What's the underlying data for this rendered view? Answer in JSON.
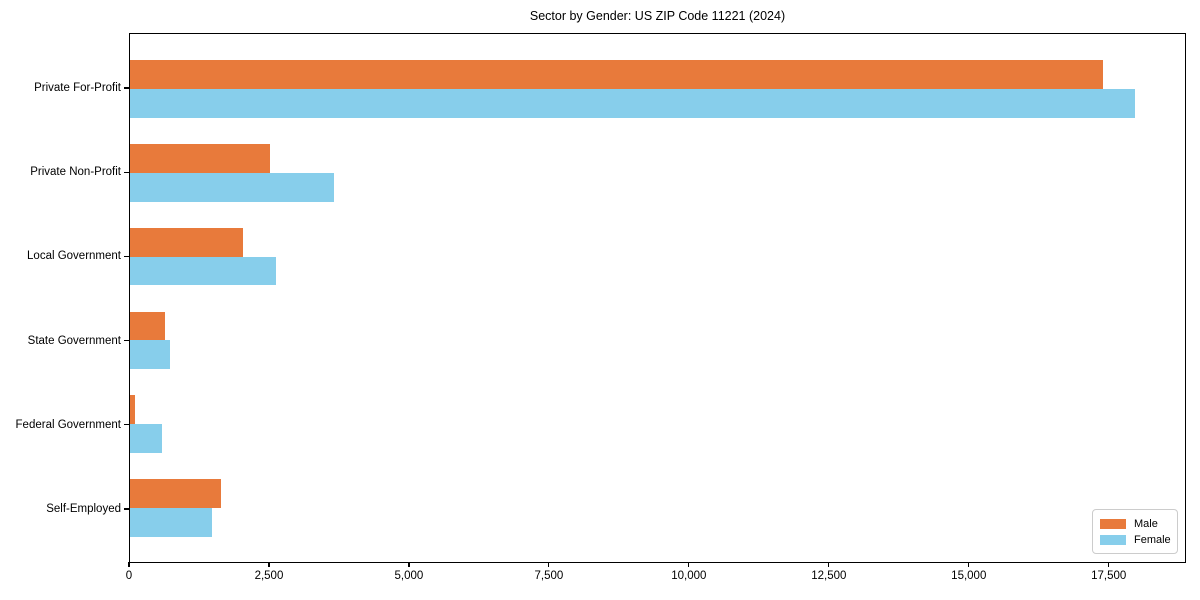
{
  "title": "Sector by Gender: US ZIP Code 11221 (2024)",
  "chart_data": {
    "type": "bar",
    "orientation": "horizontal",
    "title": "Sector by Gender: US ZIP Code 11221 (2024)",
    "categories": [
      "Private For-Profit",
      "Private Non-Profit",
      "Local Government",
      "State Government",
      "Federal Government",
      "Self-Employed"
    ],
    "series": [
      {
        "name": "Male",
        "color": "#E87A3B",
        "values": [
          17410,
          2500,
          2020,
          620,
          90,
          1630
        ]
      },
      {
        "name": "Female",
        "color": "#87CEEB",
        "values": [
          17980,
          3650,
          2620,
          710,
          570,
          1470
        ]
      }
    ],
    "xlabel": "",
    "ylabel": "",
    "xlim": [
      0,
      18880
    ],
    "x_ticks": [
      0,
      2500,
      5000,
      7500,
      10000,
      12500,
      15000,
      17500
    ],
    "x_tick_labels": [
      "0",
      "2,500",
      "5,000",
      "7,500",
      "10,000",
      "12,500",
      "15,000",
      "17,500"
    ],
    "grid": false,
    "legend_position": "lower right",
    "frame_color": "#000000",
    "background_color": "#ffffff"
  }
}
